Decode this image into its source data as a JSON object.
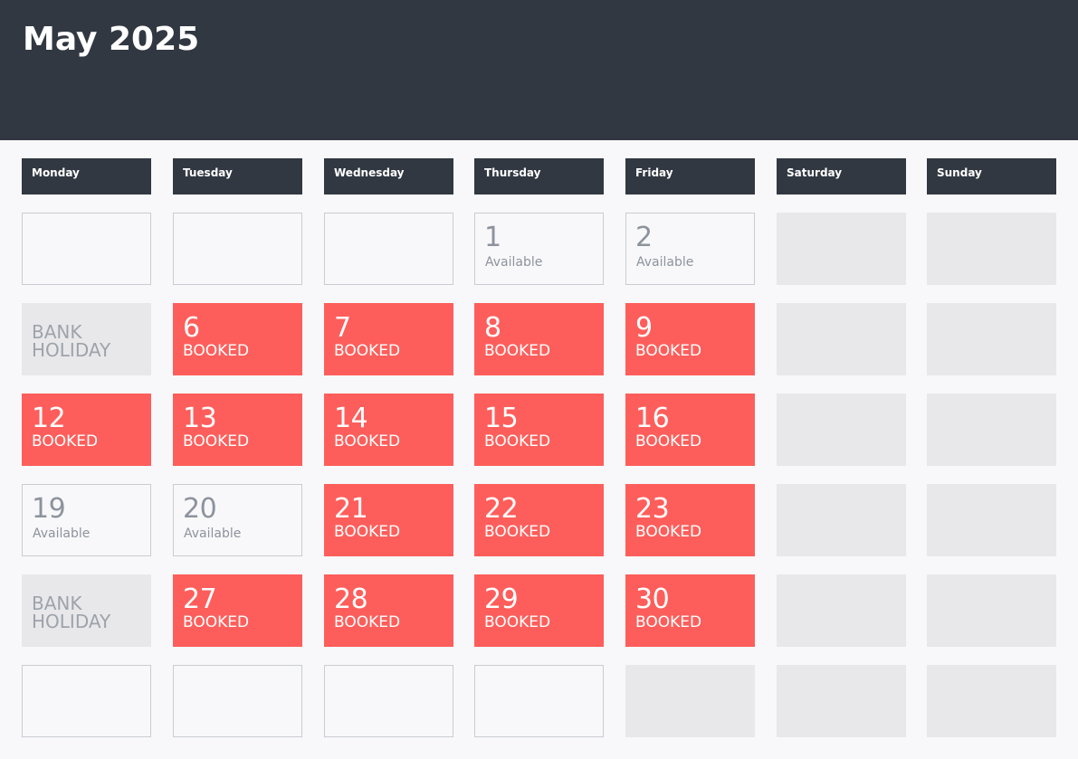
{
  "calendar": {
    "title": "May 2025",
    "weekdays": [
      "Monday",
      "Tuesday",
      "Wednesday",
      "Thursday",
      "Friday",
      "Saturday",
      "Sunday"
    ],
    "status_labels": {
      "booked": "BOOKED",
      "available": "Available",
      "holiday": "BANK HOLIDAY"
    },
    "weeks": [
      [
        {
          "type": "empty"
        },
        {
          "type": "empty"
        },
        {
          "type": "empty"
        },
        {
          "type": "available",
          "day": "1",
          "label": "Available"
        },
        {
          "type": "available",
          "day": "2",
          "label": "Available"
        },
        {
          "type": "weekend"
        },
        {
          "type": "weekend"
        }
      ],
      [
        {
          "type": "holiday",
          "label": "BANK HOLIDAY"
        },
        {
          "type": "booked",
          "day": "6",
          "label": "BOOKED"
        },
        {
          "type": "booked",
          "day": "7",
          "label": "BOOKED"
        },
        {
          "type": "booked",
          "day": "8",
          "label": "BOOKED"
        },
        {
          "type": "booked",
          "day": "9",
          "label": "BOOKED"
        },
        {
          "type": "weekend"
        },
        {
          "type": "weekend"
        }
      ],
      [
        {
          "type": "booked",
          "day": "12",
          "label": "BOOKED"
        },
        {
          "type": "booked",
          "day": "13",
          "label": "BOOKED"
        },
        {
          "type": "booked",
          "day": "14",
          "label": "BOOKED"
        },
        {
          "type": "booked",
          "day": "15",
          "label": "BOOKED"
        },
        {
          "type": "booked",
          "day": "16",
          "label": "BOOKED"
        },
        {
          "type": "weekend"
        },
        {
          "type": "weekend"
        }
      ],
      [
        {
          "type": "available",
          "day": "19",
          "label": "Available"
        },
        {
          "type": "available",
          "day": "20",
          "label": "Available"
        },
        {
          "type": "booked",
          "day": "21",
          "label": "BOOKED"
        },
        {
          "type": "booked",
          "day": "22",
          "label": "BOOKED"
        },
        {
          "type": "booked",
          "day": "23",
          "label": "BOOKED"
        },
        {
          "type": "weekend"
        },
        {
          "type": "weekend"
        }
      ],
      [
        {
          "type": "holiday",
          "label": "BANK HOLIDAY"
        },
        {
          "type": "booked",
          "day": "27",
          "label": "BOOKED"
        },
        {
          "type": "booked",
          "day": "28",
          "label": "BOOKED"
        },
        {
          "type": "booked",
          "day": "29",
          "label": "BOOKED"
        },
        {
          "type": "booked",
          "day": "30",
          "label": "BOOKED"
        },
        {
          "type": "weekend"
        },
        {
          "type": "weekend"
        }
      ],
      [
        {
          "type": "empty"
        },
        {
          "type": "empty"
        },
        {
          "type": "empty"
        },
        {
          "type": "empty"
        },
        {
          "type": "weekend"
        },
        {
          "type": "weekend"
        },
        {
          "type": "weekend"
        }
      ]
    ]
  },
  "colors": {
    "header_bg": "#323842",
    "booked": "#fe5e5b",
    "weekend": "#e8e8ea",
    "available_text": "#8d939d",
    "page_bg": "#f8f8fa"
  }
}
